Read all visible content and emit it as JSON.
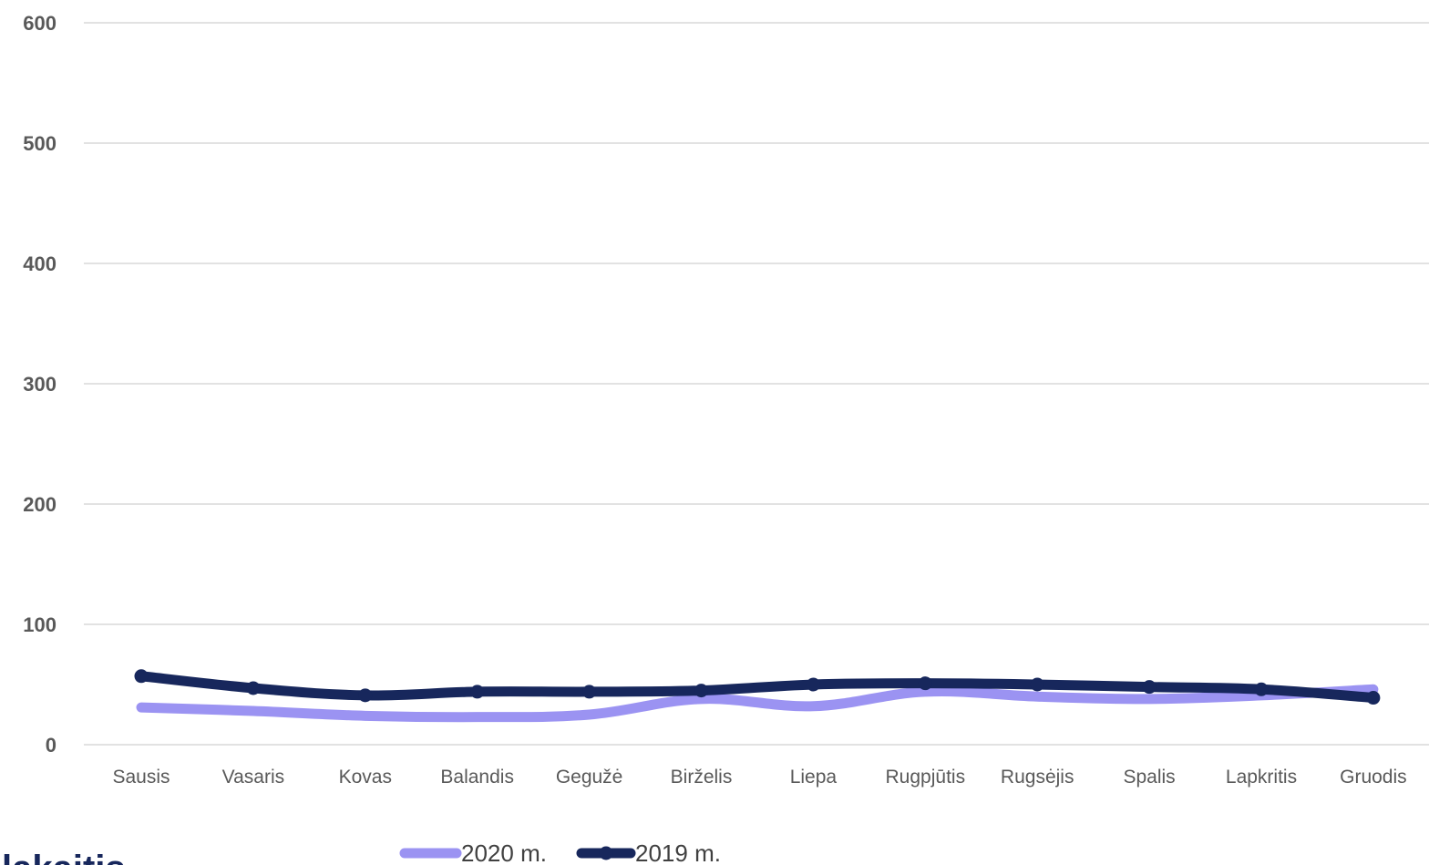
{
  "colors": {
    "series_2020": "#9b93f2",
    "series_2019": "#17275c",
    "grid": "#d9d9d9",
    "tick_text": "#595959"
  },
  "cut_text": "lakaitis",
  "chart_data": {
    "type": "line",
    "title": "",
    "xlabel": "",
    "ylabel": "",
    "ylim": [
      0,
      600
    ],
    "yticks": [
      0,
      100,
      200,
      300,
      400,
      500,
      600
    ],
    "grid": true,
    "legend_position": "bottom",
    "categories": [
      "Sausis",
      "Vasaris",
      "Kovas",
      "Balandis",
      "Gegužė",
      "Birželis",
      "Liepa",
      "Rugpjūtis",
      "Rugsėjis",
      "Spalis",
      "Lapkritis",
      "Gruodis"
    ],
    "series": [
      {
        "name": "2020 m.",
        "color": "#9b93f2",
        "markers": false,
        "smooth": true,
        "values": [
          31,
          28,
          24,
          23,
          25,
          38,
          32,
          44,
          40,
          38,
          41,
          46
        ]
      },
      {
        "name": "2019 m.",
        "color": "#17275c",
        "markers": true,
        "smooth": true,
        "values": [
          57,
          47,
          41,
          44,
          44,
          45,
          50,
          51,
          50,
          48,
          46,
          39
        ]
      }
    ]
  }
}
